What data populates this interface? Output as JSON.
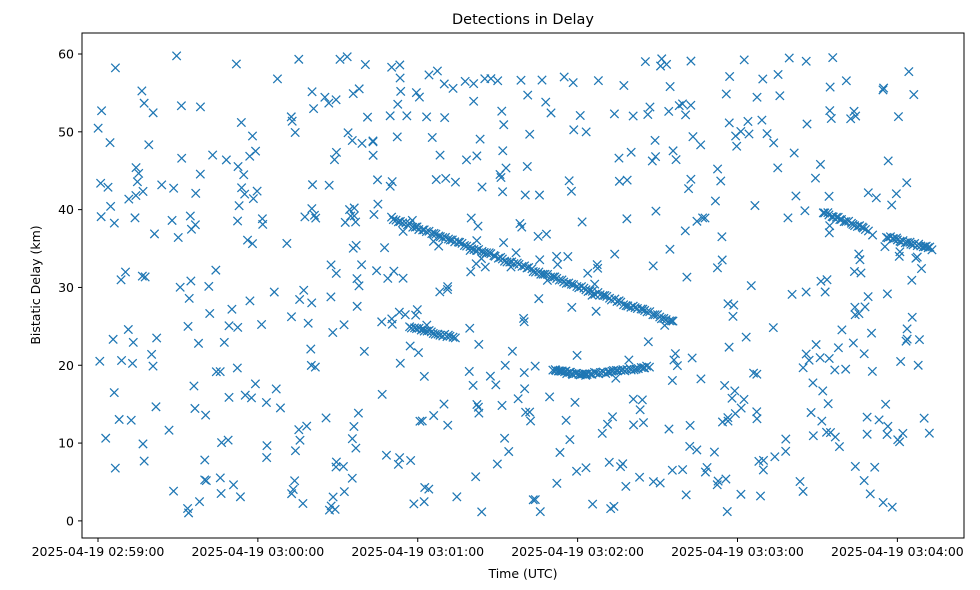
{
  "chart_data": {
    "type": "scatter",
    "title": "Detections in Delay",
    "xlabel": "Time (UTC)",
    "ylabel": "Bistatic Delay (km)",
    "marker": "x",
    "color": "#1f77b4",
    "grid": false,
    "xlim": [
      "2025-04-19 02:58:54",
      "2025-04-19 03:04:25"
    ],
    "ylim": [
      -2.2,
      62.7
    ],
    "x_ticks": [
      "2025-04-19 02:59:00",
      "2025-04-19 03:00:00",
      "2025-04-19 03:01:00",
      "2025-04-19 03:02:00",
      "2025-04-19 03:03:00",
      "2025-04-19 03:04:00"
    ],
    "y_ticks": [
      0,
      10,
      20,
      30,
      40,
      50,
      60
    ],
    "tracks": [
      {
        "from": [
          "2025-04-19 03:00:50",
          38.9
        ],
        "to": [
          "2025-04-19 03:02:36",
          25.6
        ],
        "count": 120
      },
      {
        "from": [
          "2025-04-19 03:00:57",
          25.0
        ],
        "to": [
          "2025-04-19 03:01:14",
          23.5
        ],
        "count": 22
      },
      {
        "from": [
          "2025-04-19 03:01:51",
          19.4
        ],
        "to": [
          "2025-04-19 03:02:03",
          18.7
        ],
        "count": 22
      },
      {
        "from": [
          "2025-04-19 03:02:03",
          18.8
        ],
        "to": [
          "2025-04-19 03:02:27",
          19.8
        ],
        "count": 30
      },
      {
        "from": [
          "2025-04-19 03:03:32",
          39.7
        ],
        "to": [
          "2025-04-19 03:03:49",
          37.4
        ],
        "count": 22
      },
      {
        "from": [
          "2025-04-19 03:03:56",
          36.5
        ],
        "to": [
          "2025-04-19 03:04:13",
          35.0
        ],
        "count": 25
      }
    ],
    "noise": {
      "count": 600,
      "x_range": [
        "2025-04-19 02:59:00",
        "2025-04-19 03:04:12"
      ],
      "y_range": [
        1,
        60
      ]
    }
  }
}
